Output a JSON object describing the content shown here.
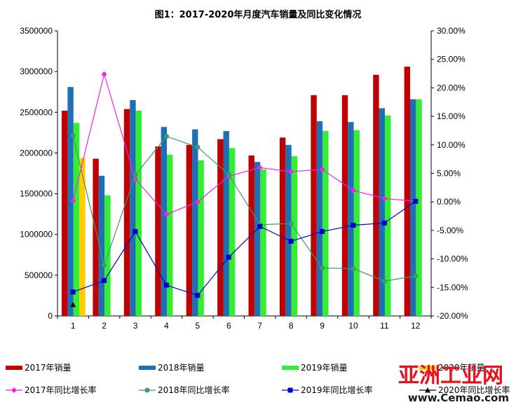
{
  "chart_data": {
    "type": "bar",
    "title": "图1：2017-2020年月度汽车销量及同比变化情况",
    "categories": [
      "1",
      "2",
      "3",
      "4",
      "5",
      "6",
      "7",
      "8",
      "9",
      "10",
      "11",
      "12"
    ],
    "y_left": {
      "min": 0,
      "max": 3500000,
      "step": 500000,
      "ticks": [
        "0",
        "500000",
        "1000000",
        "1500000",
        "2000000",
        "2500000",
        "3000000",
        "3500000"
      ]
    },
    "y_right": {
      "min": -20,
      "max": 30,
      "step": 5,
      "ticks": [
        "-20.00%",
        "-15.00%",
        "-10.00%",
        "-5.00%",
        "0.00%",
        "5.00%",
        "10.00%",
        "15.00%",
        "20.00%",
        "25.00%",
        "30.00%"
      ]
    },
    "bar_series": [
      {
        "name": "2017年销量",
        "color": "#c00000",
        "values": [
          2520000,
          1930000,
          2540000,
          2080000,
          2100000,
          2170000,
          1970000,
          2190000,
          2710000,
          2710000,
          2960000,
          3060000
        ]
      },
      {
        "name": "2018年销量",
        "color": "#1f6fb4",
        "values": [
          2810000,
          1720000,
          2650000,
          2320000,
          2290000,
          2270000,
          1890000,
          2100000,
          2390000,
          2380000,
          2550000,
          2660000
        ]
      },
      {
        "name": "2019年销量",
        "color": "#33ee33",
        "values": [
          2370000,
          1480000,
          2520000,
          1980000,
          1910000,
          2060000,
          1800000,
          1960000,
          2270000,
          2280000,
          2460000,
          2660000
        ]
      },
      {
        "name": "2020年销量",
        "color": "#ffcc00",
        "values": [
          1940000,
          null,
          null,
          null,
          null,
          null,
          null,
          null,
          null,
          null,
          null,
          null
        ]
      }
    ],
    "line_series": [
      {
        "name": "2017年同比增长率",
        "color": "#ee22ee",
        "marker": "diamond",
        "values": [
          0.2,
          22.4,
          4.0,
          -2.2,
          0.0,
          4.5,
          6.0,
          5.3,
          5.7,
          2.0,
          0.6,
          0.1
        ]
      },
      {
        "name": "2018年同比增长率",
        "color": "#3d9970",
        "marker": "circle",
        "values": [
          11.6,
          -11.1,
          4.7,
          11.5,
          9.6,
          4.8,
          -4.0,
          -3.8,
          -11.6,
          -11.7,
          -13.9,
          -13.0
        ]
      },
      {
        "name": "2019年同比增长率",
        "color": "#0000cc",
        "marker": "square",
        "values": [
          -15.8,
          -13.8,
          -5.2,
          -14.6,
          -16.4,
          -9.7,
          -4.3,
          -6.9,
          -5.2,
          -4.1,
          -3.7,
          0.1
        ]
      },
      {
        "name": "2020年同比增长率",
        "color": "#000000",
        "marker": "triangle",
        "values": [
          -18.0,
          null,
          null,
          null,
          null,
          null,
          null,
          null,
          null,
          null,
          null,
          null
        ]
      }
    ],
    "legend_position": "bottom",
    "grid": false
  },
  "watermark": {
    "main": "亚洲工业网",
    "sub": "www.Cemao.com"
  }
}
